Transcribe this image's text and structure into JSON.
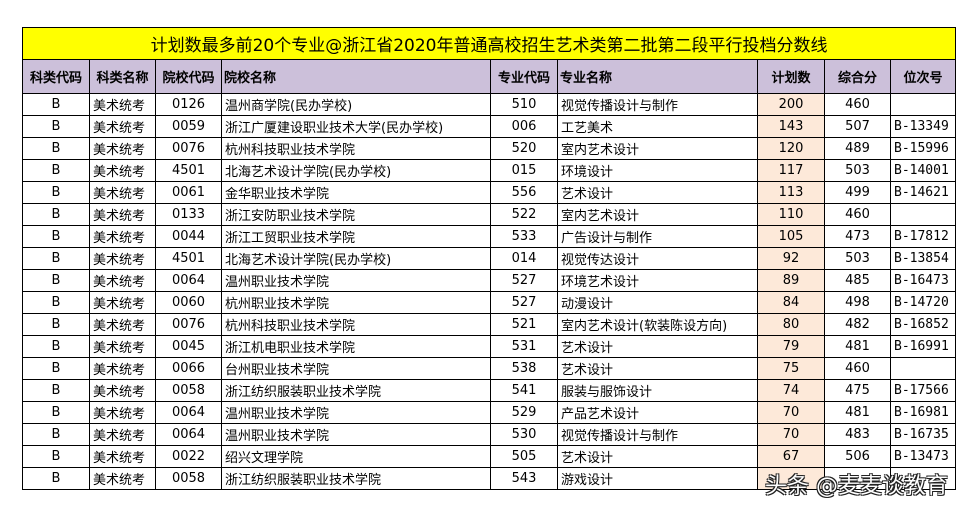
{
  "title": "计划数最多前20个专业@浙江省2020年普通高校招生艺术类第二批第二段平行投档分数线",
  "columns": [
    "科类代码",
    "科类名称",
    "院校代码",
    "院校名称",
    "专业代码",
    "专业名称",
    "计划数",
    "综合分",
    "位次号"
  ],
  "colors": {
    "title_bg": "#FFFF00",
    "header_bg": "#CCC0DA",
    "plan_bg": "#FDE9D9"
  },
  "rows": [
    [
      "B",
      "美术统考",
      "0126",
      "温州商学院(民办学校)",
      "510",
      "视觉传播设计与制作",
      "200",
      "460",
      ""
    ],
    [
      "B",
      "美术统考",
      "0059",
      "浙江广厦建设职业技术大学(民办学校)",
      "006",
      "工艺美术",
      "143",
      "507",
      "B-13349"
    ],
    [
      "B",
      "美术统考",
      "0076",
      "杭州科技职业技术学院",
      "520",
      "室内艺术设计",
      "120",
      "489",
      "B-15996"
    ],
    [
      "B",
      "美术统考",
      "4501",
      "北海艺术设计学院(民办学校)",
      "015",
      "环境设计",
      "117",
      "503",
      "B-14001"
    ],
    [
      "B",
      "美术统考",
      "0061",
      "金华职业技术学院",
      "556",
      "艺术设计",
      "113",
      "499",
      "B-14621"
    ],
    [
      "B",
      "美术统考",
      "0133",
      "浙江安防职业技术学院",
      "522",
      "室内艺术设计",
      "110",
      "460",
      ""
    ],
    [
      "B",
      "美术统考",
      "0044",
      "浙江工贸职业技术学院",
      "533",
      "广告设计与制作",
      "105",
      "473",
      "B-17812"
    ],
    [
      "B",
      "美术统考",
      "4501",
      "北海艺术设计学院(民办学校)",
      "014",
      "视觉传达设计",
      "92",
      "503",
      "B-13854"
    ],
    [
      "B",
      "美术统考",
      "0064",
      "温州职业技术学院",
      "527",
      "环境艺术设计",
      "89",
      "485",
      "B-16473"
    ],
    [
      "B",
      "美术统考",
      "0060",
      "杭州职业技术学院",
      "527",
      "动漫设计",
      "84",
      "498",
      "B-14720"
    ],
    [
      "B",
      "美术统考",
      "0076",
      "杭州科技职业技术学院",
      "521",
      "室内艺术设计(软装陈设方向)",
      "80",
      "482",
      "B-16852"
    ],
    [
      "B",
      "美术统考",
      "0045",
      "浙江机电职业技术学院",
      "531",
      "艺术设计",
      "79",
      "481",
      "B-16991"
    ],
    [
      "B",
      "美术统考",
      "0066",
      "台州职业技术学院",
      "538",
      "艺术设计",
      "75",
      "460",
      ""
    ],
    [
      "B",
      "美术统考",
      "0058",
      "浙江纺织服装职业技术学院",
      "541",
      "服装与服饰设计",
      "74",
      "475",
      "B-17566"
    ],
    [
      "B",
      "美术统考",
      "0064",
      "温州职业技术学院",
      "529",
      "产品艺术设计",
      "70",
      "481",
      "B-16981"
    ],
    [
      "B",
      "美术统考",
      "0064",
      "温州职业技术学院",
      "530",
      "视觉传播设计与制作",
      "70",
      "483",
      "B-16735"
    ],
    [
      "B",
      "美术统考",
      "0022",
      "绍兴文理学院",
      "505",
      "艺术设计",
      "67",
      "506",
      "B-13473"
    ],
    [
      "B",
      "美术统考",
      "0058",
      "浙江纺织服装职业技术学院",
      "543",
      "游戏设计",
      "",
      "",
      ""
    ]
  ],
  "watermark": "头条 @麦麦谈教育"
}
